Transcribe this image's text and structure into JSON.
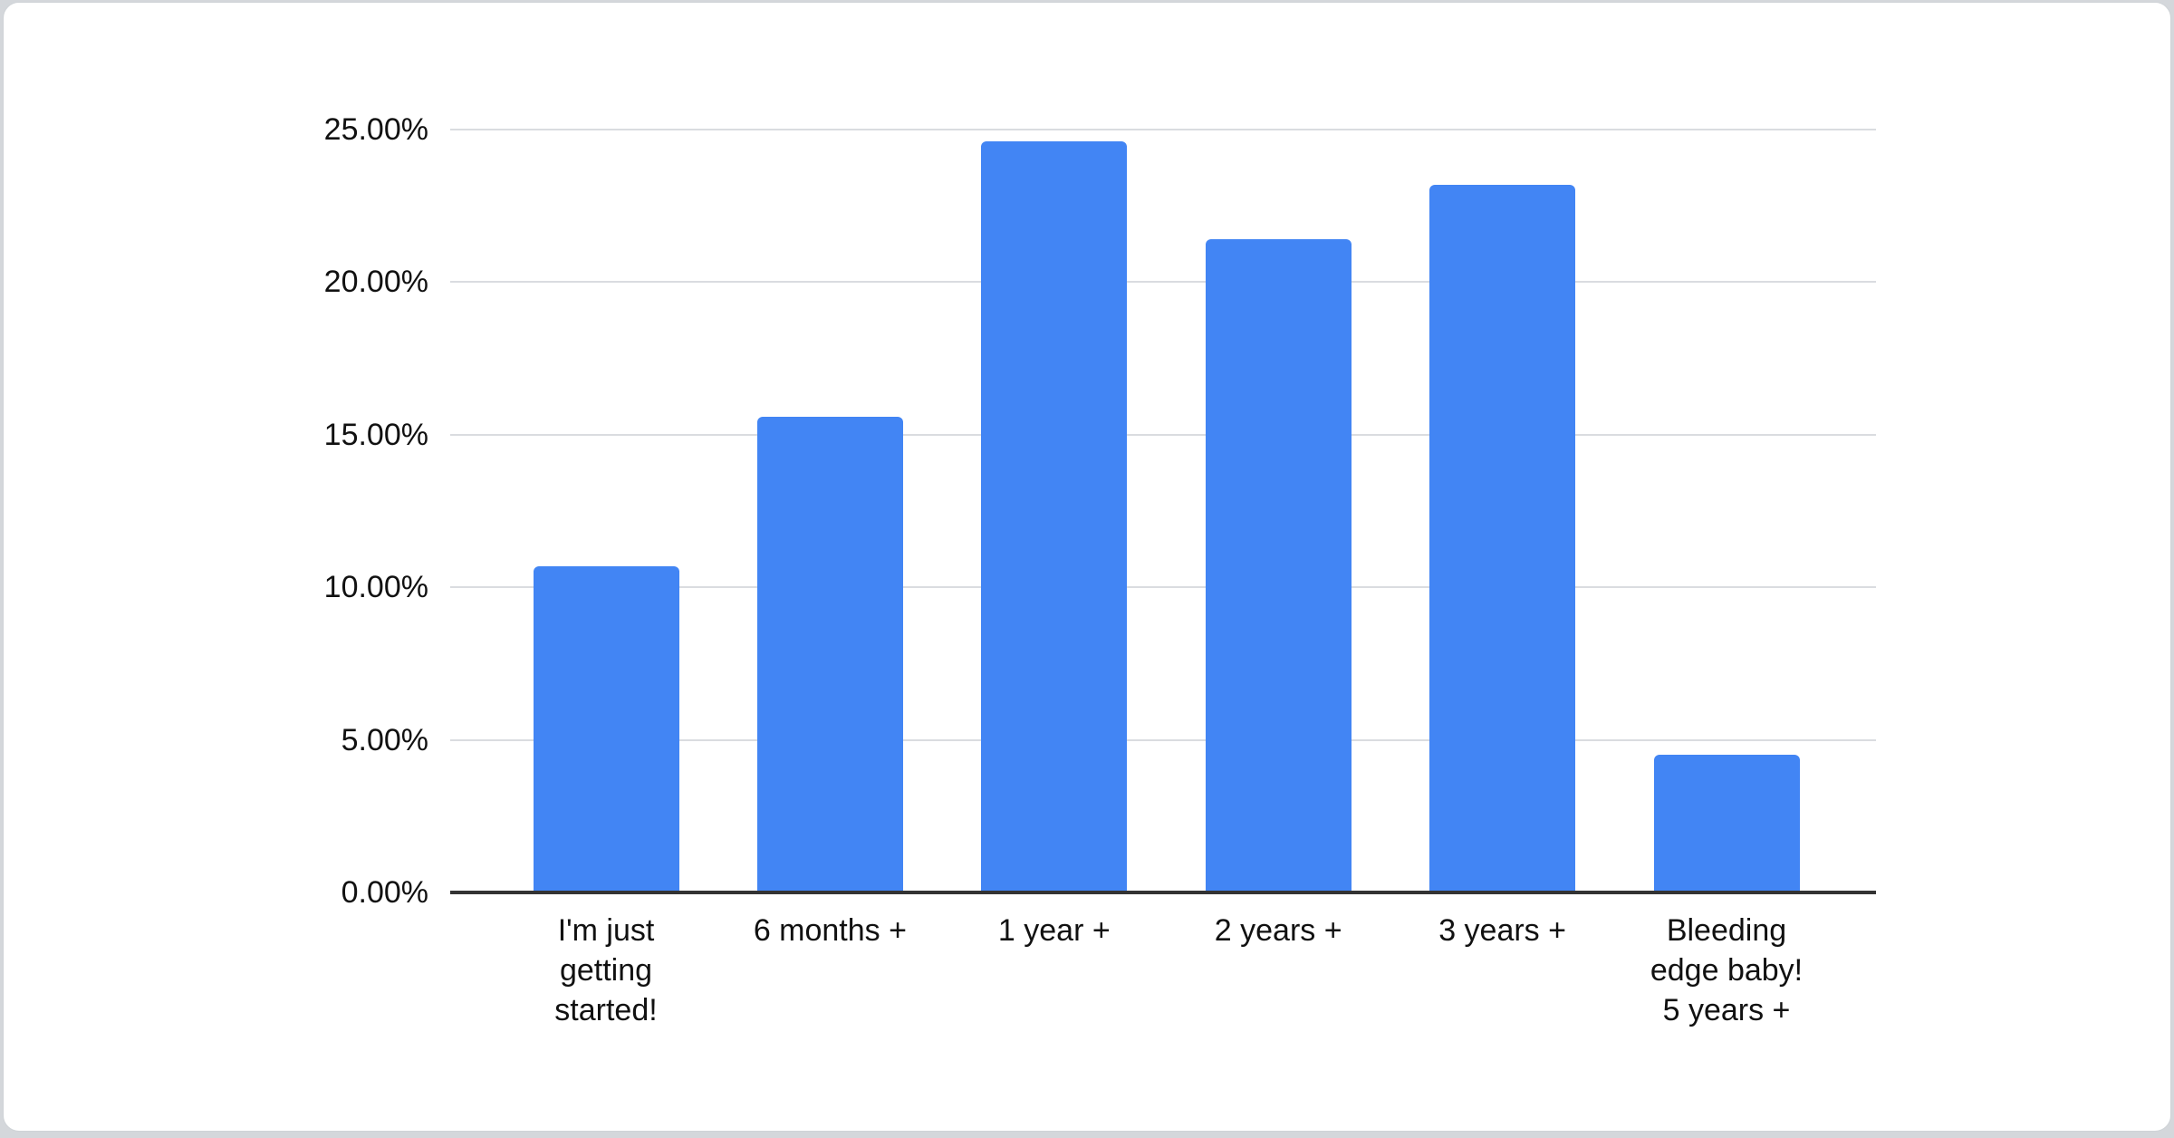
{
  "page": {
    "background_color": "#d4d7db",
    "card_background_color": "#ffffff"
  },
  "chart_data": {
    "type": "bar",
    "title": "",
    "xlabel": "",
    "ylabel": "",
    "categories": [
      "I'm just\ngetting\nstarted!",
      "6 months +",
      "1 year +",
      "2 years +",
      "3 years +",
      "Bleeding\nedge baby!\n5 years +"
    ],
    "values": [
      10.7,
      15.6,
      24.6,
      21.4,
      23.2,
      4.5
    ],
    "value_unit": "%",
    "ylim": [
      0,
      25
    ],
    "y_ticks": [
      "0.00%",
      "5.00%",
      "10.00%",
      "15.00%",
      "20.00%",
      "25.00%"
    ],
    "y_tick_values": [
      0,
      5,
      10,
      15,
      20,
      25
    ],
    "grid": true,
    "legend_position": "none",
    "bar_color": "#4285f4",
    "gridline_color": "#dadce0",
    "axis_line_color": "#333333",
    "tick_label_color": "#111111"
  }
}
